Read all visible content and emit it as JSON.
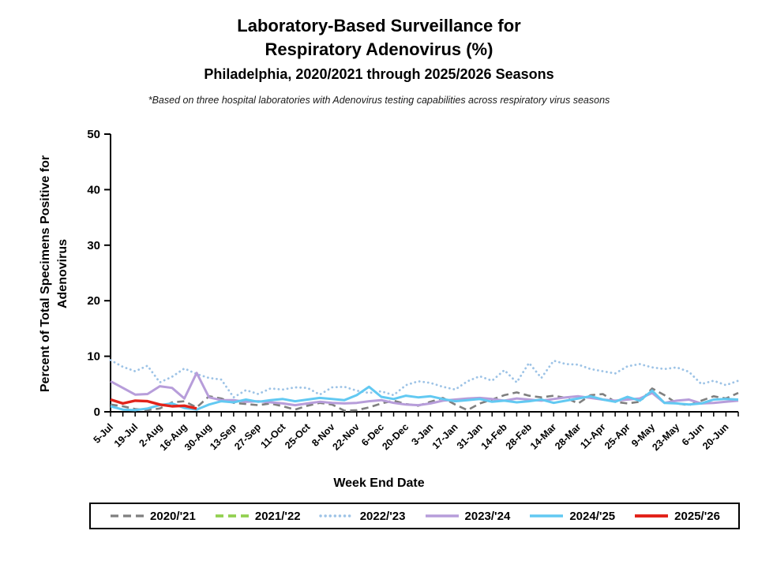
{
  "header": {
    "title_line1": "Laboratory-Based Surveillance for",
    "title_line2": "Respiratory Adenovirus (%)",
    "title_line3": "Philadelphia, 2020/2021 through 2025/2026 Seasons",
    "footnote": "*Based on three hospital laboratories with Adenovirus testing capabilities across respiratory virus seasons"
  },
  "chart_data": {
    "type": "line",
    "title": "Laboratory-Based Surveillance for Respiratory Adenovirus (%) Philadelphia, 2020/2021 through 2025/2026 Seasons",
    "xlabel": "Week End Date",
    "ylabel": "Percent of Total Specimens Positive for Adenovirus",
    "ylabel_lines": [
      "Percent of Total Specimens Positive for",
      "Adenovirus"
    ],
    "ylim": [
      0,
      50
    ],
    "yticks": [
      0,
      10,
      20,
      30,
      40,
      50
    ],
    "n_points": 52,
    "x_label_every": 2,
    "grid": false,
    "legend_position": "bottom",
    "x_tick_labels": [
      "5-Jul",
      "19-Jul",
      "2-Aug",
      "16-Aug",
      "30-Aug",
      "13-Sep",
      "27-Sep",
      "11-Oct",
      "25-Oct",
      "8-Nov",
      "22-Nov",
      "6-Dec",
      "20-Dec",
      "3-Jan",
      "17-Jan",
      "31-Jan",
      "14-Feb",
      "28-Feb",
      "14-Mar",
      "28-Mar",
      "11-Apr",
      "25-Apr",
      "9-May",
      "23-May",
      "6-Jun",
      "20-Jun"
    ],
    "series": [
      {
        "name": "season-2020-21",
        "label": "2020/'21",
        "color": "#7f7f7f",
        "style": "dashed",
        "width": 2.6,
        "values": [
          1.3,
          1.0,
          0.5,
          0.3,
          0.6,
          1.7,
          1.9,
          0.8,
          2.8,
          2.4,
          1.6,
          1.4,
          1.2,
          1.5,
          1.0,
          0.4,
          1.1,
          1.6,
          1.3,
          0.2,
          0.3,
          0.8,
          1.5,
          2.0,
          1.4,
          1.1,
          1.8,
          2.5,
          1.3,
          0.3,
          1.5,
          2.2,
          3.0,
          3.5,
          2.9,
          2.6,
          2.9,
          2.5,
          1.5,
          3.0,
          3.2,
          1.8,
          1.5,
          1.8,
          4.2,
          3.0,
          1.5,
          1.2,
          2.0,
          2.8,
          2.4,
          3.4
        ]
      },
      {
        "name": "season-2021-22",
        "label": "2021/'22",
        "color": "#92d050",
        "style": "dashed",
        "width": 3.2,
        "values": []
      },
      {
        "name": "season-2022-23",
        "label": "2022/'23",
        "color": "#9dc3e6",
        "style": "dotted",
        "width": 2.8,
        "values": [
          9.3,
          8.1,
          7.3,
          8.3,
          5.3,
          6.3,
          7.8,
          6.8,
          6.1,
          5.8,
          2.6,
          3.9,
          3.2,
          4.2,
          4.0,
          4.4,
          4.3,
          3.1,
          4.4,
          4.5,
          3.8,
          3.4,
          3.7,
          3.0,
          4.8,
          5.5,
          5.2,
          4.5,
          4.0,
          5.5,
          6.4,
          5.6,
          7.5,
          5.3,
          8.8,
          6.1,
          9.2,
          8.6,
          8.5,
          7.7,
          7.3,
          6.9,
          8.2,
          8.6,
          8.0,
          7.7,
          8.0,
          7.2,
          5.0,
          5.6,
          4.8,
          5.6
        ]
      },
      {
        "name": "season-2023-24",
        "label": "2023/'24",
        "color": "#b79dda",
        "style": "solid",
        "width": 3,
        "values": [
          5.5,
          4.3,
          3.1,
          3.2,
          4.6,
          4.3,
          2.4,
          7.0,
          2.6,
          2.1,
          2.1,
          1.8,
          1.9,
          1.7,
          1.5,
          1.2,
          1.5,
          1.8,
          1.6,
          1.5,
          1.6,
          1.9,
          2.1,
          1.6,
          1.3,
          1.2,
          1.5,
          2.0,
          2.2,
          2.4,
          2.5,
          2.3,
          2.0,
          2.4,
          2.2,
          2.0,
          2.3,
          2.6,
          2.8,
          2.5,
          2.2,
          2.0,
          2.2,
          2.4,
          3.4,
          1.6,
          2.0,
          2.2,
          1.5,
          1.6,
          1.8,
          2.0
        ]
      },
      {
        "name": "season-2024-25",
        "label": "2024/'25",
        "color": "#62c9f2",
        "style": "solid",
        "width": 3,
        "values": [
          1.0,
          0.4,
          0.3,
          0.6,
          1.2,
          1.5,
          0.7,
          0.4,
          1.3,
          1.9,
          1.7,
          2.2,
          1.8,
          2.1,
          2.3,
          1.9,
          2.2,
          2.5,
          2.3,
          2.1,
          3.0,
          4.5,
          2.7,
          2.3,
          2.9,
          2.6,
          2.8,
          2.3,
          1.9,
          2.1,
          2.3,
          1.8,
          2.0,
          1.7,
          1.9,
          2.2,
          1.6,
          2.0,
          2.4,
          2.8,
          2.2,
          1.8,
          2.7,
          2.0,
          3.8,
          1.6,
          1.5,
          1.3,
          1.5,
          2.2,
          2.3,
          2.2
        ]
      },
      {
        "name": "season-2025-26",
        "label": "2025/'26",
        "color": "#e2231a",
        "style": "solid",
        "width": 3.4,
        "values": [
          2.2,
          1.5,
          2.0,
          1.9,
          1.3,
          1.0,
          1.1,
          0.6
        ]
      }
    ]
  }
}
